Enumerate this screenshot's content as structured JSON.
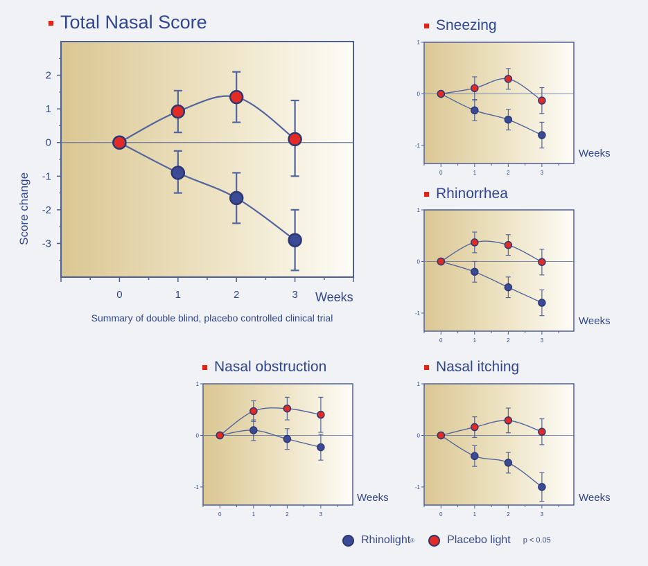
{
  "colors": {
    "rhinolight": "#3b4a94",
    "placebo": "#e22b25",
    "line": "#52659e",
    "axis": "#4f5e95",
    "text": "#2f4690"
  },
  "legend": {
    "rhinolight_label": "Rhinolight",
    "rhinolight_mark": "®",
    "placebo_label": "Placebo light",
    "p_note": "p < 0.05"
  },
  "chart_data": [
    {
      "id": "total",
      "type": "line",
      "title": "Total Nasal Score",
      "ylabel": "Score change",
      "xlabel": "Weeks",
      "caption": "Summary of double blind, placebo controlled clinical trial",
      "x": [
        0,
        1,
        2,
        3
      ],
      "xlim": [
        -1,
        4
      ],
      "ylim": [
        -4,
        3
      ],
      "yticks": [
        2,
        1,
        0,
        -1,
        -2,
        -3
      ],
      "xticks": [
        0,
        1,
        2,
        3
      ],
      "series": [
        {
          "name": "Rhinolight",
          "values": [
            0,
            -0.9,
            -1.65,
            -2.9
          ],
          "err_low": [
            0,
            0.6,
            0.75,
            0.9
          ],
          "err_high": [
            0,
            0.65,
            0.75,
            0.9
          ]
        },
        {
          "name": "Placebo light",
          "values": [
            0,
            0.92,
            1.35,
            0.1
          ],
          "err_low": [
            0,
            0.62,
            0.75,
            1.1
          ],
          "err_high": [
            0,
            0.62,
            0.75,
            1.15
          ]
        }
      ]
    },
    {
      "id": "sneezing",
      "type": "line",
      "title": "Sneezing",
      "xlabel": "Weeks",
      "x": [
        0,
        1,
        2,
        3
      ],
      "xlim": [
        -0.5,
        3.95
      ],
      "ylim": [
        -1.35,
        1
      ],
      "yticks": [
        1,
        0,
        -1
      ],
      "xticks": [
        0,
        1,
        2,
        3
      ],
      "series": [
        {
          "name": "Rhinolight",
          "values": [
            0,
            -0.32,
            -0.5,
            -0.8
          ],
          "err_low": [
            0,
            0.2,
            0.2,
            0.25
          ],
          "err_high": [
            0,
            0.2,
            0.2,
            0.25
          ]
        },
        {
          "name": "Placebo light",
          "values": [
            0,
            0.11,
            0.29,
            -0.13
          ],
          "err_low": [
            0,
            0.22,
            0.2,
            0.25
          ],
          "err_high": [
            0,
            0.22,
            0.2,
            0.25
          ]
        }
      ]
    },
    {
      "id": "rhinorrhea",
      "type": "line",
      "title": "Rhinorrhea",
      "xlabel": "Weeks",
      "x": [
        0,
        1,
        2,
        3
      ],
      "xlim": [
        -0.5,
        3.95
      ],
      "ylim": [
        -1.35,
        1
      ],
      "yticks": [
        1,
        0,
        -1
      ],
      "xticks": [
        0,
        1,
        2,
        3
      ],
      "series": [
        {
          "name": "Rhinolight",
          "values": [
            0,
            -0.2,
            -0.5,
            -0.8
          ],
          "err_low": [
            0,
            0.2,
            0.2,
            0.25
          ],
          "err_high": [
            0,
            0.2,
            0.2,
            0.25
          ]
        },
        {
          "name": "Placebo light",
          "values": [
            0,
            0.37,
            0.32,
            -0.01
          ],
          "err_low": [
            0,
            0.2,
            0.2,
            0.25
          ],
          "err_high": [
            0,
            0.2,
            0.2,
            0.25
          ]
        }
      ]
    },
    {
      "id": "obstruction",
      "type": "line",
      "title": "Nasal obstruction",
      "xlabel": "Weeks",
      "x": [
        0,
        1,
        2,
        3
      ],
      "xlim": [
        -0.5,
        3.95
      ],
      "ylim": [
        -1.35,
        1
      ],
      "yticks": [
        1,
        0,
        -1
      ],
      "xticks": [
        0,
        1,
        2,
        3
      ],
      "series": [
        {
          "name": "Rhinolight",
          "values": [
            0,
            0.1,
            -0.07,
            -0.23
          ],
          "err_low": [
            0,
            0.2,
            0.2,
            0.25
          ],
          "err_high": [
            0,
            0.2,
            0.2,
            0.25
          ]
        },
        {
          "name": "Placebo light",
          "values": [
            0,
            0.47,
            0.52,
            0.4
          ],
          "err_low": [
            0,
            0.2,
            0.22,
            0.34
          ],
          "err_high": [
            0,
            0.2,
            0.22,
            0.34
          ]
        }
      ]
    },
    {
      "id": "itching",
      "type": "line",
      "title": "Nasal itching",
      "xlabel": "Weeks",
      "x": [
        0,
        1,
        2,
        3
      ],
      "xlim": [
        -0.5,
        3.95
      ],
      "ylim": [
        -1.35,
        1
      ],
      "yticks": [
        1,
        0,
        -1
      ],
      "xticks": [
        0,
        1,
        2,
        3
      ],
      "series": [
        {
          "name": "Rhinolight",
          "values": [
            0,
            -0.4,
            -0.53,
            -1.0
          ],
          "err_low": [
            0,
            0.2,
            0.2,
            0.28
          ],
          "err_high": [
            0,
            0.2,
            0.2,
            0.28
          ]
        },
        {
          "name": "Placebo light",
          "values": [
            0,
            0.16,
            0.29,
            0.07
          ],
          "err_low": [
            0,
            0.2,
            0.24,
            0.25
          ],
          "err_high": [
            0,
            0.2,
            0.24,
            0.25
          ]
        }
      ]
    }
  ]
}
